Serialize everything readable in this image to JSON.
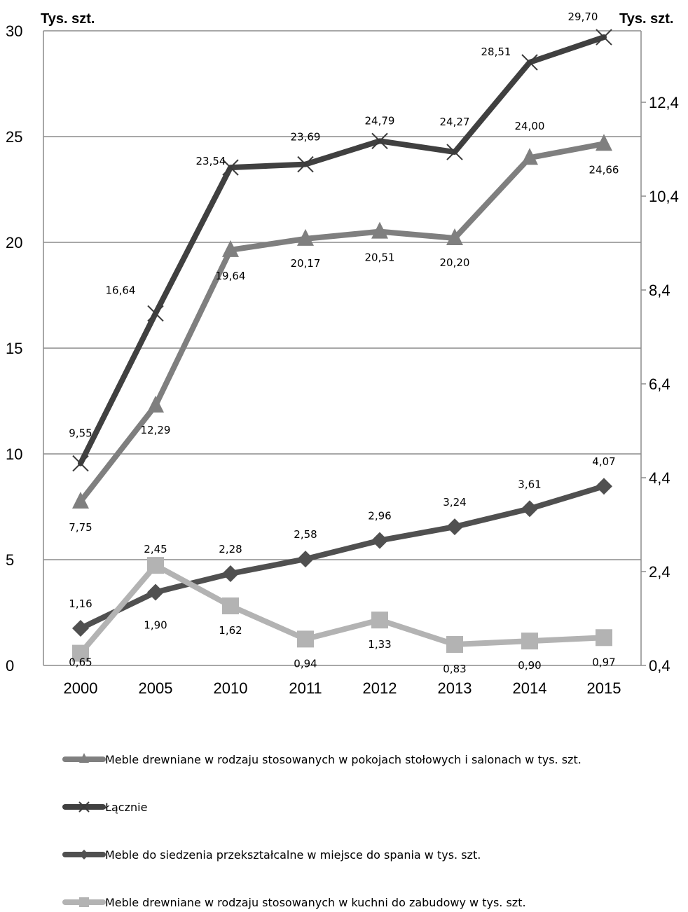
{
  "chart_data": {
    "type": "line",
    "y_left_unit": "Tys. szt.",
    "y_right_unit": "Tys. szt.",
    "categories": [
      "2000",
      "2005",
      "2010",
      "2011",
      "2012",
      "2013",
      "2014",
      "2015"
    ],
    "y_left_ticks": [
      "0",
      "5",
      "10",
      "15",
      "20",
      "25",
      "30"
    ],
    "y_left_lim": [
      0,
      30
    ],
    "y_right_ticks": [
      "0,4",
      "2,4",
      "4,4",
      "6,4",
      "8,4",
      "10,4",
      "12,4"
    ],
    "y_right_lim": [
      0.4,
      13.4
    ],
    "grid": true,
    "legend_position": "bottom",
    "series": [
      {
        "name": "Meble drewniane w rodzaju stosowanych w pokojach stołowych i salonach w tys. szt.",
        "axis": "left",
        "color": "#7f7f7f",
        "marker": "triangle",
        "values": [
          7.75,
          12.29,
          19.64,
          20.17,
          20.51,
          20.2,
          24.0,
          24.66
        ],
        "labels": [
          "7,75",
          "12,29",
          "19,64",
          "20,17",
          "20,51",
          "20,20",
          "24,00",
          "24,66"
        ]
      },
      {
        "name": "Łącznie",
        "axis": "left",
        "color": "#404040",
        "marker": "x",
        "values": [
          9.55,
          16.64,
          23.54,
          23.69,
          24.79,
          24.27,
          28.51,
          29.7
        ],
        "labels": [
          "9,55",
          "16,64",
          "23,54",
          "23,69",
          "24,79",
          "24,27",
          "28,51",
          "29,70"
        ]
      },
      {
        "name": "Meble do siedzenia przekształcalne w miejsce do spania  w tys. szt.",
        "axis": "right",
        "color": "#505050",
        "marker": "diamond",
        "values": [
          1.16,
          1.9,
          2.28,
          2.58,
          2.96,
          3.24,
          3.61,
          4.07
        ],
        "labels": [
          "1,16",
          "1,90",
          "2,28",
          "2,58",
          "2,96",
          "3,24",
          "3,61",
          "4,07"
        ]
      },
      {
        "name": "Meble drewniane w rodzaju stosowanych w kuchni do zabudowy w tys. szt.",
        "axis": "right",
        "color": "#b3b3b3",
        "marker": "square",
        "values": [
          0.65,
          2.45,
          1.62,
          0.94,
          1.33,
          0.83,
          0.9,
          0.97
        ],
        "labels": [
          "0,65",
          "2,45",
          "1,62",
          "0,94",
          "1,33",
          "0,83",
          "0,90",
          "0,97"
        ]
      }
    ]
  }
}
